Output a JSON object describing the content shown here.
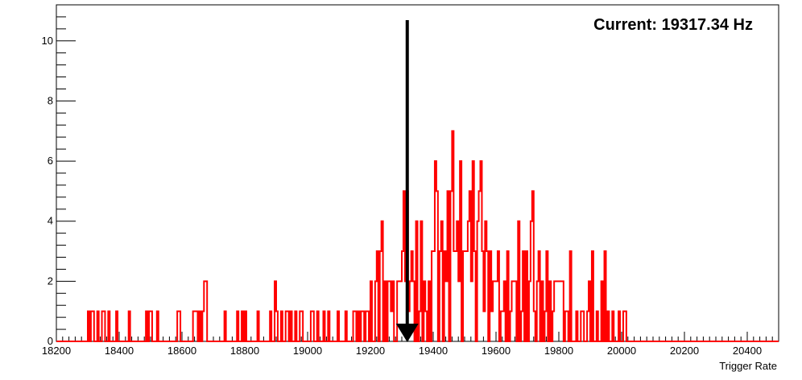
{
  "chart_data": {
    "type": "histogram",
    "xlabel": "Trigger Rate",
    "ylabel": "",
    "xlim": [
      18200,
      20500
    ],
    "ylim": [
      0,
      11.2
    ],
    "x_ticks": [
      18200,
      18400,
      18600,
      18800,
      19000,
      19200,
      19400,
      19600,
      19800,
      20000,
      20200,
      20400
    ],
    "y_ticks": [
      0,
      2,
      4,
      6,
      8,
      10
    ],
    "grid": false,
    "annotation": "Current: 19317.34 Hz",
    "marker_x": 19317.34,
    "series": [
      {
        "color": "#ff0000",
        "values_start": 18300,
        "bin_width": 5,
        "counts": [
          1,
          0,
          1,
          1,
          0,
          0,
          1,
          0,
          0,
          1,
          1,
          0,
          0,
          1,
          0,
          0,
          0,
          0,
          1,
          0,
          0,
          0,
          0,
          0,
          0,
          0,
          1,
          0,
          0,
          0,
          0,
          0,
          0,
          0,
          0,
          0,
          0,
          1,
          0,
          1,
          1,
          0,
          0,
          0,
          1,
          0,
          0,
          0,
          0,
          0,
          0,
          0,
          0,
          0,
          0,
          0,
          0,
          1,
          1,
          0,
          0,
          0,
          0,
          0,
          0,
          0,
          0,
          1,
          1,
          1,
          0,
          1,
          0,
          1,
          2,
          2,
          0,
          0,
          0,
          0,
          0,
          0,
          0,
          0,
          0,
          0,
          0,
          1,
          0,
          0,
          0,
          0,
          0,
          0,
          0,
          1,
          0,
          0,
          1,
          0,
          1,
          0,
          0,
          0,
          0,
          0,
          0,
          0,
          1,
          0,
          0,
          0,
          0,
          0,
          0,
          0,
          1,
          0,
          0,
          2,
          1,
          0,
          0,
          1,
          0,
          0,
          1,
          1,
          0,
          1,
          0,
          0,
          1,
          0,
          0,
          1,
          1,
          0,
          0,
          0,
          0,
          0,
          1,
          1,
          0,
          0,
          1,
          0,
          0,
          0,
          1,
          0,
          0,
          1,
          0,
          0,
          0,
          0,
          0,
          1,
          0,
          0,
          0,
          0,
          1,
          0,
          0,
          0,
          0,
          1,
          1,
          0,
          1,
          0,
          1,
          1,
          0,
          1,
          1,
          0,
          2,
          0,
          0,
          2,
          3,
          0,
          3,
          4,
          0,
          2,
          0,
          2,
          2,
          1,
          2,
          0,
          0,
          2,
          2,
          2,
          3,
          5,
          2,
          5,
          1,
          2,
          3,
          2,
          0,
          4,
          0,
          1,
          4,
          0,
          2,
          1,
          0,
          2,
          0,
          3,
          3,
          6,
          5,
          0,
          3,
          4,
          0,
          3,
          2,
          5,
          0,
          5,
          7,
          3,
          3,
          4,
          2,
          6,
          0,
          3,
          3,
          3,
          4,
          5,
          2,
          6,
          3,
          0,
          4,
          5,
          6,
          3,
          1,
          4,
          3,
          0,
          3,
          1,
          2,
          2,
          2,
          3,
          0,
          1,
          1,
          2,
          0,
          3,
          0,
          1,
          2,
          2,
          2,
          0,
          4,
          0,
          1,
          3,
          0,
          3,
          0,
          2,
          4,
          5,
          1,
          0,
          2,
          3,
          0,
          2,
          0,
          1,
          3,
          0,
          2,
          0,
          1,
          2,
          2,
          2,
          2,
          2,
          2,
          0,
          1,
          1,
          0,
          3,
          0,
          0,
          0,
          1,
          0,
          0,
          1,
          1,
          0,
          0,
          1,
          2,
          0,
          3,
          0,
          0,
          1,
          0,
          0,
          2,
          0,
          3,
          0,
          1,
          0,
          0,
          1,
          0,
          0,
          0,
          1,
          0,
          0,
          1,
          1,
          0,
          0,
          0,
          0,
          0,
          0,
          0,
          0,
          0,
          0,
          0,
          0,
          0,
          0,
          0,
          0,
          0
        ]
      }
    ]
  }
}
